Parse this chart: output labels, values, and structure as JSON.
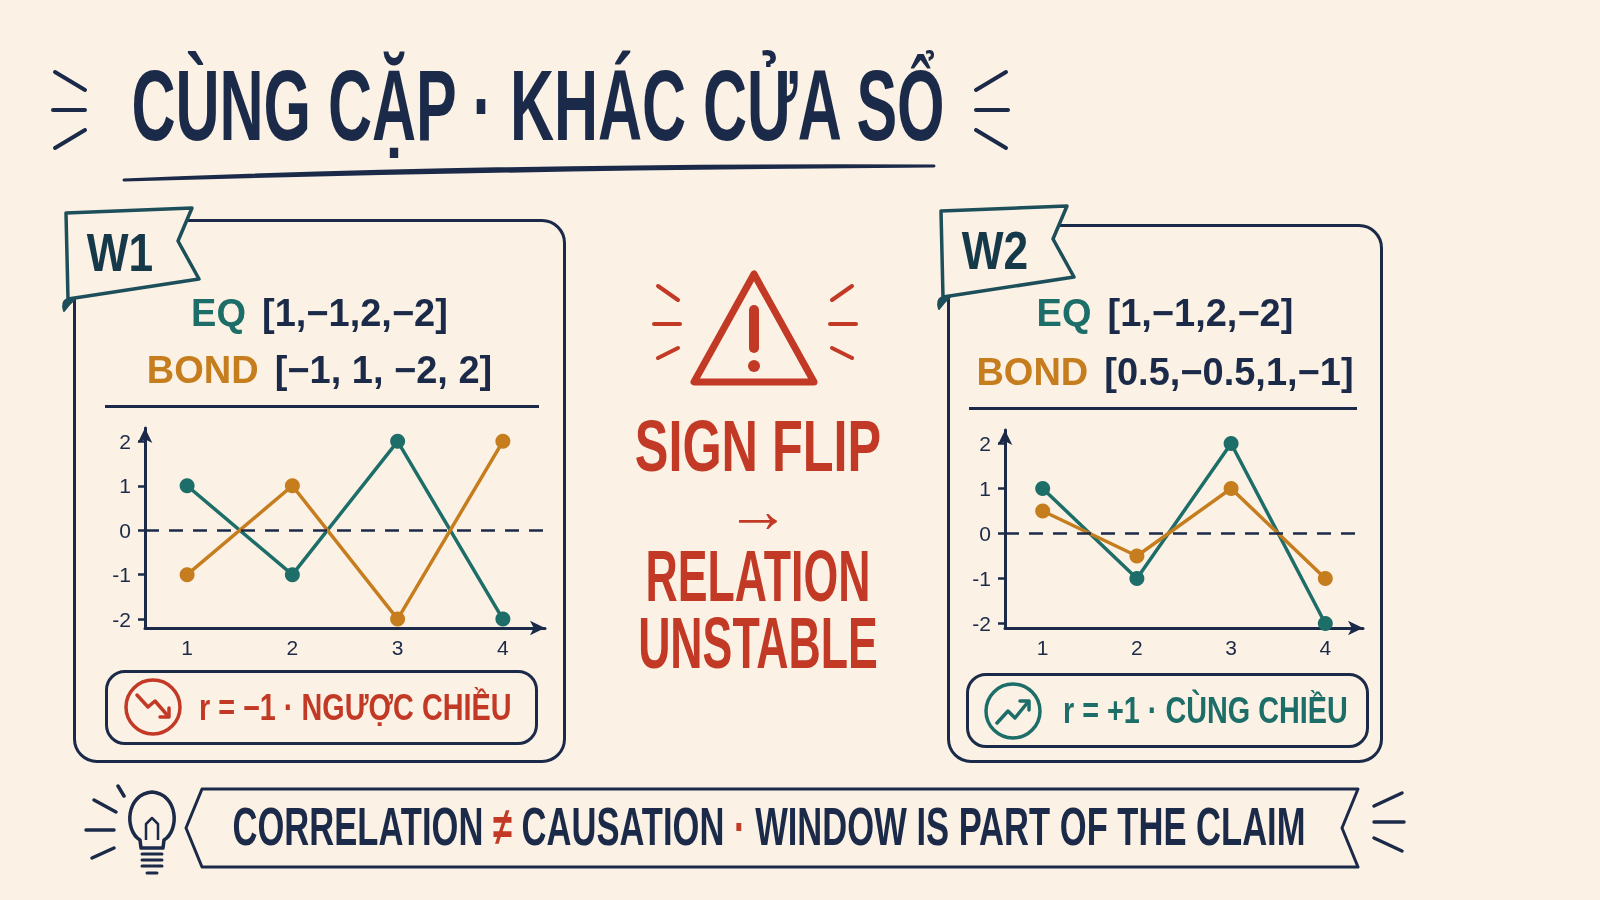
{
  "chart_data": [
    {
      "type": "other",
      "title": "CÙNG CẶP · KHÁC CỬA SỔ"
    },
    {
      "type": "line",
      "title": "W1",
      "x": [
        1,
        2,
        3,
        4
      ],
      "series": [
        {
          "name": "EQ",
          "color": "#1d6e69",
          "values": [
            1,
            -1,
            2,
            -2
          ]
        },
        {
          "name": "BOND",
          "color": "#c57d1e",
          "values": [
            -1,
            1,
            -2,
            2
          ]
        }
      ],
      "xlim": [
        0.6,
        4.4
      ],
      "xticks": [
        1,
        2,
        3,
        4
      ],
      "ylim": [
        -2.2,
        2.3
      ],
      "yticks": [
        -2,
        -1,
        0,
        1,
        2
      ],
      "ref_lines": [
        {
          "axis": "y",
          "value": 0,
          "color": "#1b2a49",
          "line_style": "dashed"
        }
      ],
      "marker": "circle",
      "line_style": "solid",
      "legend": "top",
      "annotations": [
        "[1,−1,2,−2]",
        "[−1, 1, −2, 2]",
        "r = −1 · NGƯỢC CHIỀU"
      ]
    },
    {
      "type": "other",
      "title": "SIGN FLIP",
      "annotations": [
        "→",
        "RELATION UNSTABLE"
      ]
    },
    {
      "type": "line",
      "title": "W2",
      "x": [
        1,
        2,
        3,
        4
      ],
      "series": [
        {
          "name": "EQ",
          "color": "#1d6e69",
          "values": [
            1,
            -1,
            2,
            -2
          ]
        },
        {
          "name": "BOND",
          "color": "#c57d1e",
          "values": [
            0.5,
            -0.5,
            1,
            -1
          ]
        }
      ],
      "xlim": [
        0.6,
        4.4
      ],
      "xticks": [
        1,
        2,
        3,
        4
      ],
      "ylim": [
        -2.1,
        2.3
      ],
      "yticks": [
        -2,
        -1,
        0,
        1,
        2
      ],
      "ref_lines": [
        {
          "axis": "y",
          "value": 0,
          "color": "#1b2a49",
          "line_style": "dashed"
        }
      ],
      "marker": "circle",
      "line_style": "solid",
      "legend": "top",
      "annotations": [
        "[1,−1,2,−2]",
        "[0.5,−0.5,1,−1]",
        "r = +1 · CÙNG CHIỀU"
      ]
    },
    {
      "type": "other",
      "annotations": [
        "CORRELATION ≠ CAUSATION · WINDOW IS PART OF THE CLAIM"
      ]
    }
  ]
}
